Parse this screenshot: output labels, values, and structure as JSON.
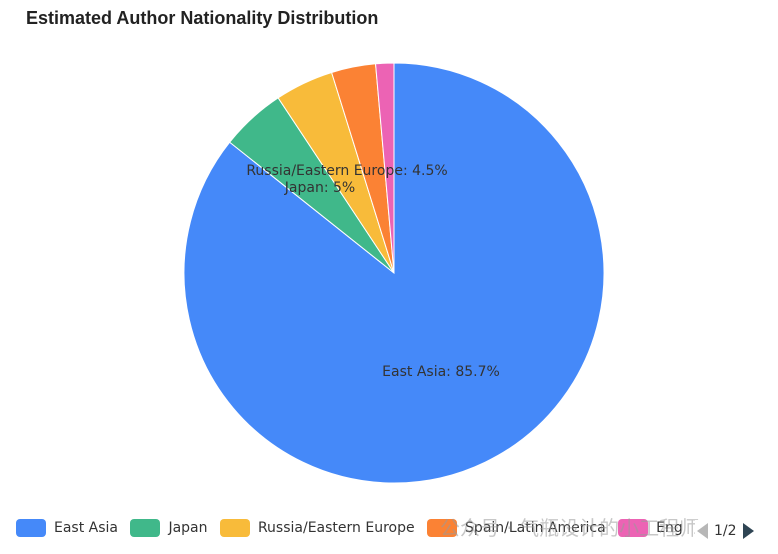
{
  "chart_data": {
    "type": "pie",
    "title": "Estimated Author Nationality Distribution",
    "series": [
      {
        "name": "East Asia",
        "value": 85.7,
        "color": "#4589f9",
        "label": "East Asia: 85.7%"
      },
      {
        "name": "Japan",
        "value": 5,
        "color": "#40b88a",
        "label": "Japan: 5%"
      },
      {
        "name": "Russia/Eastern Europe",
        "value": 4.5,
        "color": "#f8bb3a",
        "label": "Russia/Eastern Europe: 4.5%"
      },
      {
        "name": "Spain/Latin America",
        "value": 3.4,
        "color": "#fb8234",
        "label": ""
      },
      {
        "name": "English-speaking",
        "value": 1.4,
        "color": "#ec63b4",
        "label": ""
      }
    ],
    "legend": {
      "placement": "bottom",
      "items": [
        "East Asia",
        "Japan",
        "Russia/Eastern Europe",
        "Spain/Latin America",
        "Eng"
      ],
      "page": "1/2"
    }
  },
  "watermark": "公众号 · 气瓶设计的小工程师"
}
